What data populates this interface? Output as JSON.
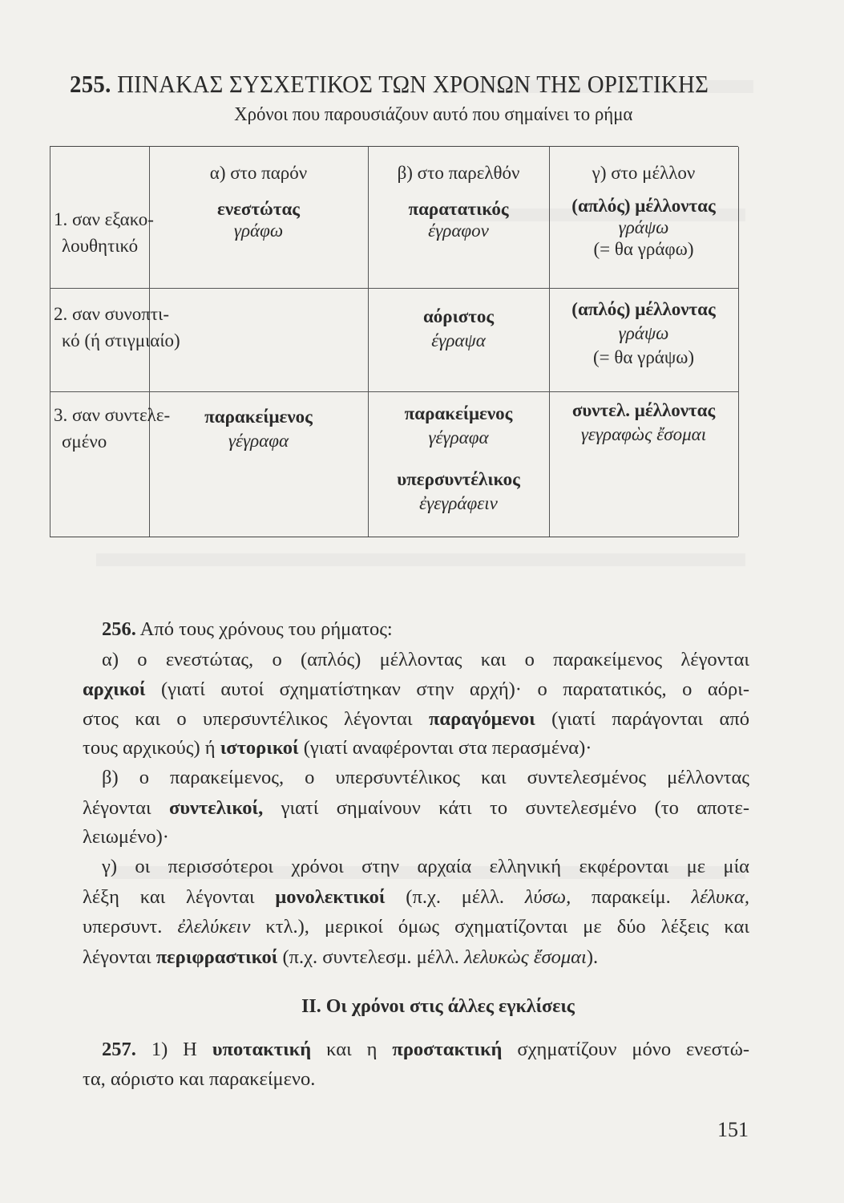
{
  "heading": {
    "number": "255.",
    "title": "ΠΙΝΑΚΑΣ ΣΥΣΧΕΤΙΚΟΣ ΤΩΝ ΧΡΟΝΩΝ ΤΗΣ ΟΡΙΣΤΙΚΗΣ",
    "subtitle": "Χρόνοι που παρουσιάζουν αυτό που σημαίνει το ρήμα"
  },
  "table": {
    "columns": [
      "α) στο παρόν",
      "β) στο παρελθόν",
      "γ) στο μέλλον"
    ],
    "rows": [
      {
        "label": [
          "1. σαν εξακο-",
          "λουθητικό"
        ],
        "present": {
          "tense": "ενεστώτας",
          "example": "γράφω"
        },
        "past": [
          {
            "tense": "παρατατικός",
            "example": "έγραφον"
          }
        ],
        "future": {
          "tense": "(απλός) μέλλοντας",
          "example": "γράψω",
          "note": "(= θα γράφω)"
        }
      },
      {
        "label": [
          "2. σαν συνοπτι-",
          "κό (ή στιγμιαίο)"
        ],
        "present": {
          "tense": "",
          "example": ""
        },
        "past": [
          {
            "tense": "αόριστος",
            "example": "έγραψα"
          }
        ],
        "future": {
          "tense": "(απλός) μέλλοντας",
          "example": "γράψω",
          "note": "(= θα γράψω)"
        }
      },
      {
        "label": [
          "3. σαν συντελε-",
          "σμένο"
        ],
        "present": {
          "tense": "παρακείμενος",
          "example": "γέγραφα"
        },
        "past": [
          {
            "tense": "παρακείμενος",
            "example": "γέγραφα"
          },
          {
            "tense": "υπερσυντέλικος",
            "example": "ἐγεγράφειν"
          }
        ],
        "future": {
          "tense": "συντελ. μέλλοντας",
          "example": "γεγραφὼς ἔσομαι",
          "note": ""
        }
      }
    ]
  },
  "body_lines": [
    [
      {
        "t": "256.",
        "s": "b"
      },
      {
        "t": " Από τους χρόνους του ρήματος:",
        "s": ""
      }
    ],
    [
      {
        "t": "α) ο ενεστώτας, ο (απλός) μέλλοντας και ο παρακείμενος λέγονται",
        "s": ""
      }
    ],
    [
      {
        "t": "αρχικοί",
        "s": "b"
      },
      {
        "t": " (γιατί αυτοί σχηματίστηκαν στην αρχή)· ο παρατατικός, ο αόρι-",
        "s": ""
      }
    ],
    [
      {
        "t": "στος και ο υπερσυντέλικος λέγονται ",
        "s": ""
      },
      {
        "t": "παραγόμενοι",
        "s": "b"
      },
      {
        "t": " (γιατί παράγονται από",
        "s": ""
      }
    ],
    [
      {
        "t": "τους αρχικούς) ή ",
        "s": ""
      },
      {
        "t": "ιστορικοί",
        "s": "b"
      },
      {
        "t": " (γιατί αναφέρονται στα περασμένα)·",
        "s": ""
      }
    ],
    [
      {
        "t": "β) ο παρακείμενος, ο υπερσυντέλικος και συντελεσμένος μέλλοντας",
        "s": ""
      }
    ],
    [
      {
        "t": "λέγονται ",
        "s": ""
      },
      {
        "t": "συντελικοί,",
        "s": "b"
      },
      {
        "t": " γιατί σημαίνουν κάτι το συντελεσμένο (το αποτε-",
        "s": ""
      }
    ],
    [
      {
        "t": "λειωμένο)·",
        "s": ""
      }
    ],
    [
      {
        "t": "γ) οι περισσότεροι χρόνοι στην αρχαία ελληνική εκφέρονται με μία",
        "s": ""
      }
    ],
    [
      {
        "t": "λέξη και λέγονται ",
        "s": ""
      },
      {
        "t": "μονολεκτικοί",
        "s": "b"
      },
      {
        "t": " (π.χ. μέλλ. ",
        "s": ""
      },
      {
        "t": "λύσω,",
        "s": "i"
      },
      {
        "t": " παρακείμ. ",
        "s": ""
      },
      {
        "t": "λέλυκα,",
        "s": "i"
      }
    ],
    [
      {
        "t": "υπερσυντ. ",
        "s": ""
      },
      {
        "t": "ἐλελύκειν",
        "s": "i"
      },
      {
        "t": " κτλ.), μερικοί όμως σχηματίζονται με δύο λέξεις και",
        "s": ""
      }
    ],
    [
      {
        "t": "λέγονται ",
        "s": ""
      },
      {
        "t": "περιφραστικοί",
        "s": "b"
      },
      {
        "t": " (π.χ. συντελεσμ. μέλλ. ",
        "s": ""
      },
      {
        "t": "λελυκὼς ἔσομαι",
        "s": "i"
      },
      {
        "t": ").",
        "s": ""
      }
    ]
  ],
  "section2": "ΙΙ. Οι χρόνοι στις άλλες εγκλίσεις",
  "para257": [
    [
      {
        "t": "257.",
        "s": "b"
      },
      {
        "t": " 1) Η ",
        "s": ""
      },
      {
        "t": "υποτακτική",
        "s": "b"
      },
      {
        "t": " και η ",
        "s": ""
      },
      {
        "t": "προστακτική",
        "s": "b"
      },
      {
        "t": " σχηματίζουν μόνο ενεστώ-",
        "s": ""
      }
    ],
    [
      {
        "t": "τα, αόριστο και παρακείμενο.",
        "s": ""
      }
    ]
  ],
  "page_number": "151"
}
